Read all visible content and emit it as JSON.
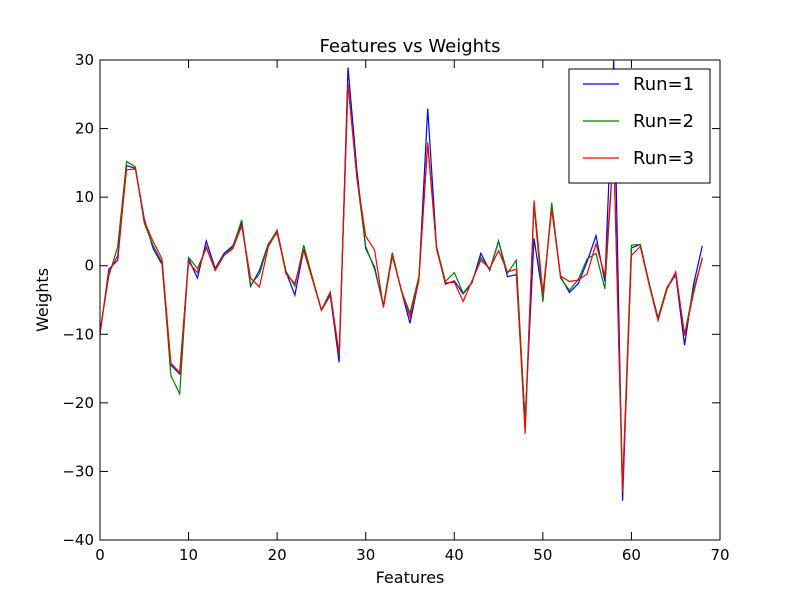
{
  "chart_data": {
    "type": "line",
    "title": "Features vs Weights",
    "xlabel": "Features",
    "ylabel": "Weights",
    "xlim": [
      0,
      70
    ],
    "ylim": [
      -40,
      30
    ],
    "x_ticks": [
      0,
      10,
      20,
      30,
      40,
      50,
      60,
      70
    ],
    "y_ticks": [
      -40,
      -30,
      -20,
      -10,
      0,
      10,
      20,
      30
    ],
    "x_tick_labels": [
      "0",
      "10",
      "20",
      "30",
      "40",
      "50",
      "60",
      "70"
    ],
    "y_tick_labels": [
      "−40",
      "−30",
      "−20",
      "−10",
      "0",
      "10",
      "20",
      "30"
    ],
    "grid": false,
    "legend_position": "top-right",
    "x": [
      0,
      1,
      2,
      3,
      4,
      5,
      6,
      7,
      8,
      9,
      10,
      11,
      12,
      13,
      14,
      15,
      16,
      17,
      18,
      19,
      20,
      21,
      22,
      23,
      24,
      25,
      26,
      27,
      28,
      29,
      30,
      31,
      32,
      33,
      34,
      35,
      36,
      37,
      38,
      39,
      40,
      41,
      42,
      43,
      44,
      45,
      46,
      47,
      48,
      49,
      50,
      51,
      52,
      53,
      54,
      55,
      56,
      57,
      58,
      59,
      60,
      61,
      62,
      63,
      64,
      65,
      66,
      67,
      68
    ],
    "series": [
      {
        "name": "Run=1",
        "color": "#0000ff",
        "values": [
          -10.0,
          -0.5,
          0.8,
          14.6,
          14.2,
          6.8,
          2.5,
          0.2,
          -14.5,
          -15.8,
          1.0,
          -1.8,
          3.6,
          -0.4,
          1.8,
          2.9,
          6.3,
          -3.0,
          -0.7,
          3.2,
          4.8,
          -0.9,
          -4.3,
          2.4,
          -2.0,
          -6.5,
          -4.3,
          -14.1,
          28.9,
          14.0,
          2.5,
          -0.2,
          -5.9,
          1.8,
          -3.5,
          -8.4,
          -2.0,
          22.9,
          2.6,
          -2.7,
          -2.2,
          -4.1,
          -2.5,
          1.8,
          -0.7,
          3.6,
          -1.6,
          -1.3,
          -22.5,
          4.0,
          -4.5,
          8.6,
          -1.6,
          -3.9,
          -2.6,
          0.6,
          4.4,
          -2.3,
          30.0,
          -34.3,
          2.6,
          3.1,
          -2.6,
          -7.6,
          -3.3,
          -1.3,
          -11.6,
          -2.8,
          2.9
        ]
      },
      {
        "name": "Run=2",
        "color": "#008000",
        "values": [
          -9.5,
          -1.5,
          2.8,
          15.2,
          14.4,
          6.2,
          2.9,
          0.5,
          -16.0,
          -18.7,
          1.2,
          -0.4,
          2.6,
          -0.6,
          1.6,
          2.7,
          6.7,
          -2.8,
          -1.2,
          3.1,
          5.2,
          -0.8,
          -3.0,
          3.0,
          -1.8,
          -6.4,
          -3.8,
          -13.2,
          26.6,
          12.8,
          2.8,
          -0.5,
          -5.8,
          1.9,
          -3.6,
          -6.9,
          -1.6,
          18.0,
          2.8,
          -2.3,
          -1.0,
          -4.0,
          -2.4,
          1.2,
          -0.6,
          3.6,
          -1.1,
          0.8,
          -23.0,
          8.8,
          -5.3,
          9.2,
          -1.8,
          -3.6,
          -2.0,
          1.0,
          1.8,
          -3.4,
          17.2,
          -32.0,
          3.0,
          3.1,
          -2.5,
          -7.7,
          -3.2,
          -1.1,
          -10.0,
          -3.5,
          1.0
        ]
      },
      {
        "name": "Run=3",
        "color": "#ff0000",
        "values": [
          -9.8,
          -1.0,
          1.5,
          14.0,
          14.1,
          6.5,
          3.5,
          1.0,
          -14.2,
          -15.6,
          0.5,
          -1.0,
          2.8,
          -0.7,
          1.5,
          2.5,
          5.8,
          -1.8,
          -3.1,
          2.8,
          5.0,
          -1.2,
          -2.6,
          2.2,
          -2.1,
          -6.5,
          -4.0,
          -12.8,
          26.5,
          13.0,
          4.3,
          2.3,
          -6.1,
          1.4,
          -3.4,
          -7.5,
          -2.2,
          17.8,
          2.4,
          -2.5,
          -2.4,
          -5.2,
          -2.2,
          0.8,
          -0.4,
          2.2,
          -0.9,
          -0.5,
          -24.5,
          9.5,
          -4.0,
          8.2,
          -1.5,
          -2.3,
          -2.1,
          -1.2,
          3.2,
          -1.5,
          17.0,
          -33.0,
          1.5,
          2.8,
          -2.8,
          -8.0,
          -3.5,
          -0.9,
          -10.2,
          -4.1,
          1.2
        ]
      }
    ]
  }
}
